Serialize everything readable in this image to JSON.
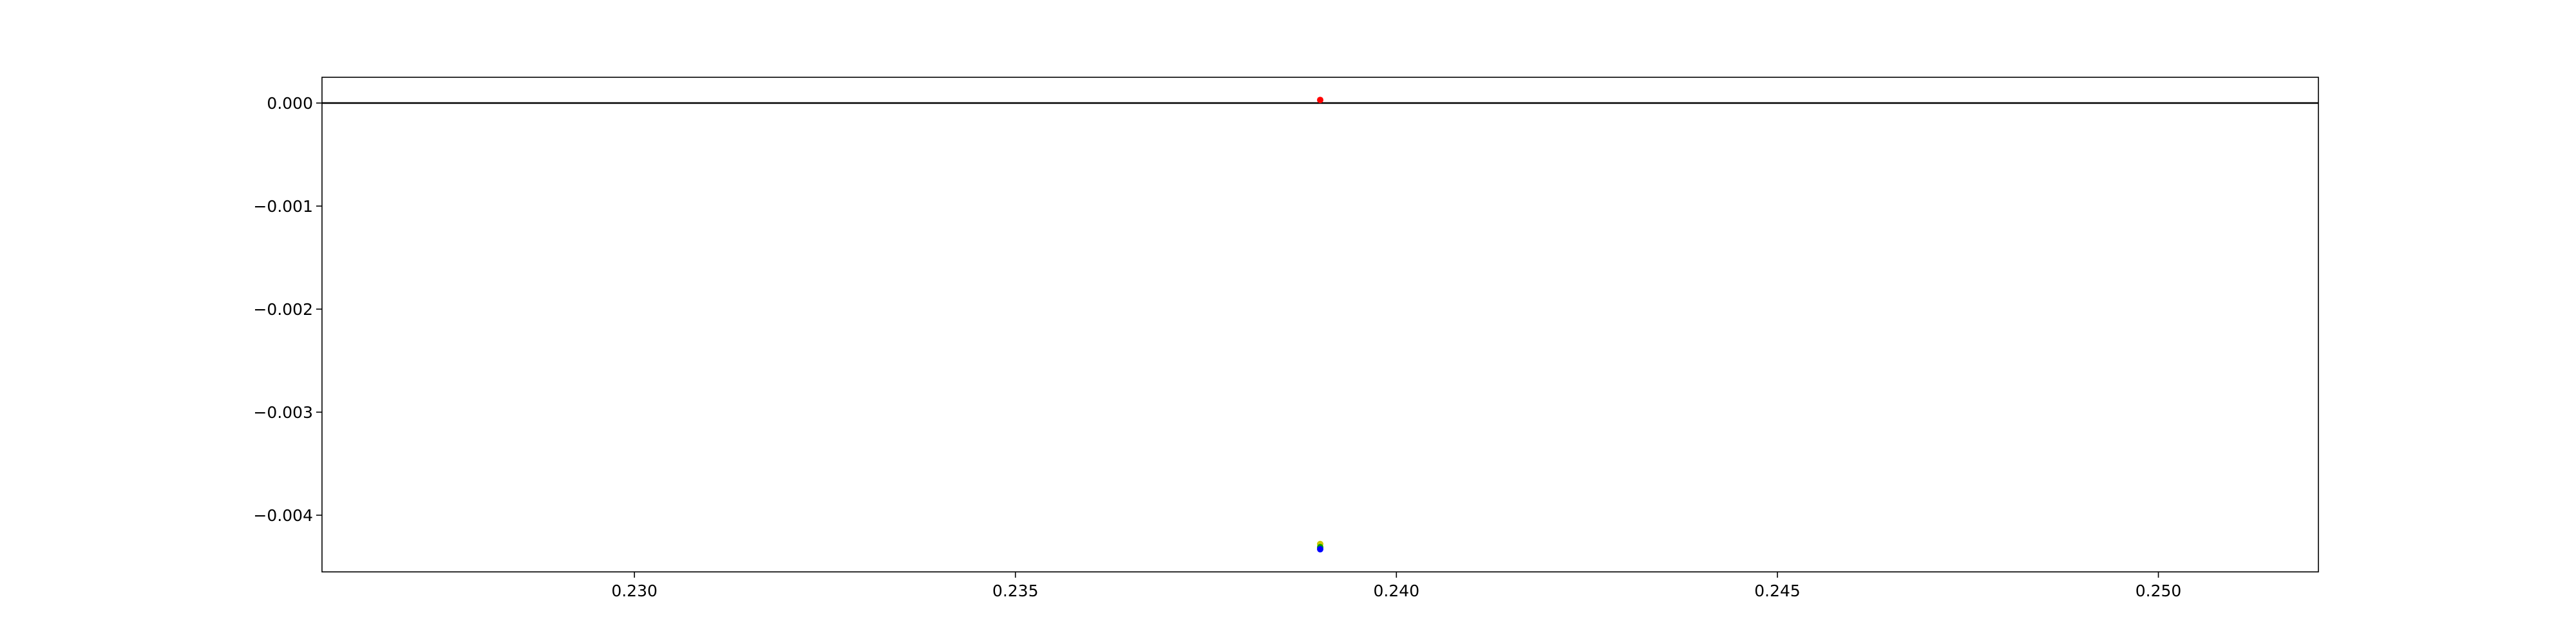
{
  "chart_data": {
    "type": "scatter",
    "title": "",
    "xlabel": "",
    "ylabel": "",
    "xlim": [
      0.2259,
      0.2521
    ],
    "ylim": [
      -0.00455,
      0.00025
    ],
    "grid": false,
    "legend": "none",
    "x_ticks": [
      "0.230",
      "0.235",
      "0.240",
      "0.245",
      "0.250"
    ],
    "x_tick_values": [
      0.23,
      0.235,
      0.24,
      0.245,
      0.25
    ],
    "y_ticks": [
      "0.000",
      "−0.001",
      "−0.002",
      "−0.003",
      "−0.004"
    ],
    "y_tick_values": [
      0.0,
      -0.001,
      -0.002,
      -0.003,
      -0.004
    ],
    "hline": {
      "y": 0.0,
      "color": "#000000"
    },
    "series": [
      {
        "color": "#ff0000",
        "points": [
          {
            "x": 0.239,
            "y": 3e-05
          }
        ]
      },
      {
        "color": "#c8c800",
        "points": [
          {
            "x": 0.239,
            "y": -0.00428
          }
        ]
      },
      {
        "color": "#00a000",
        "points": [
          {
            "x": 0.239,
            "y": -0.00431
          }
        ]
      },
      {
        "color": "#0000ff",
        "points": [
          {
            "x": 0.239,
            "y": -0.00433
          }
        ]
      }
    ]
  }
}
